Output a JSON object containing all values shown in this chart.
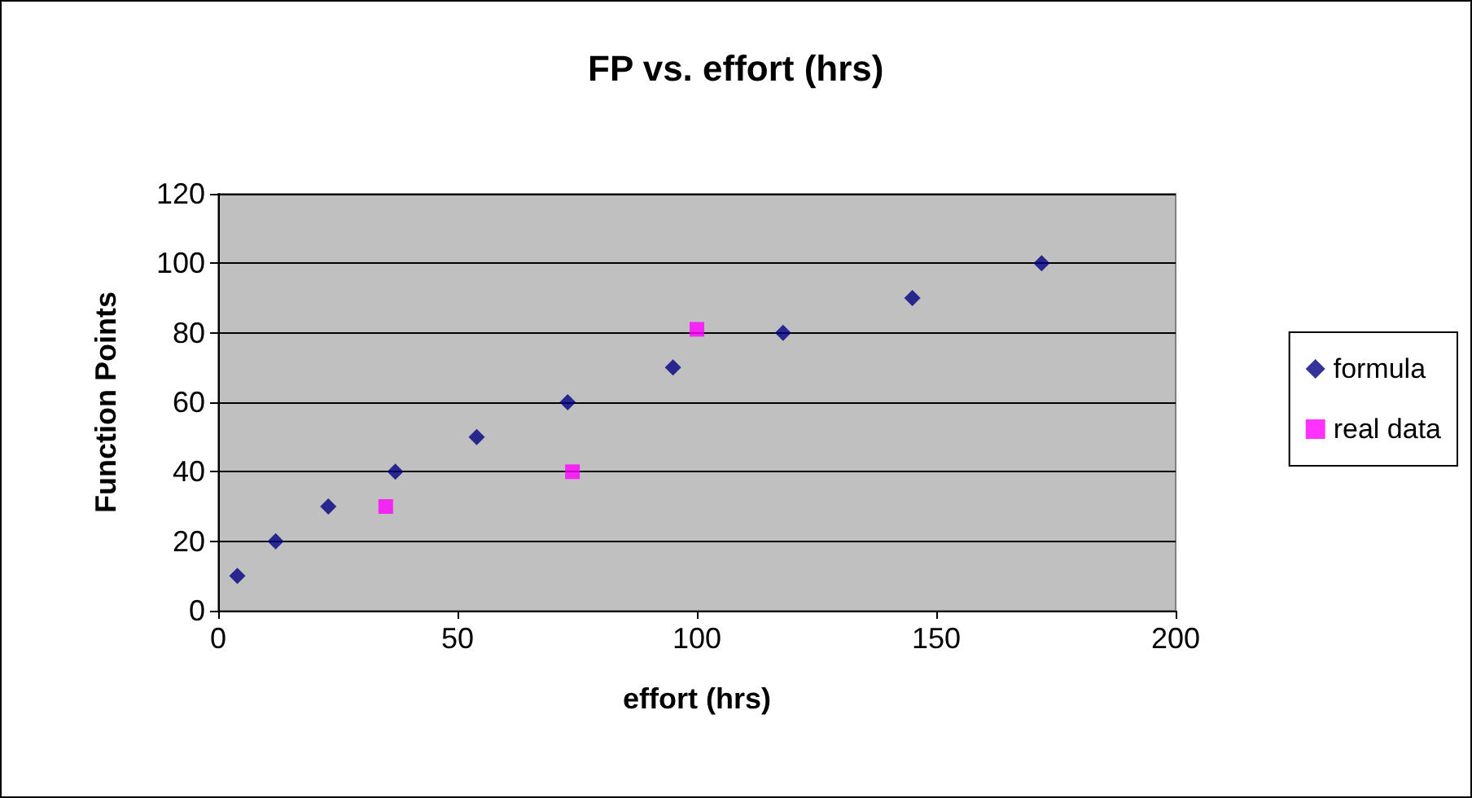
{
  "chart_data": {
    "type": "scatter",
    "title": "FP vs. effort (hrs)",
    "xlabel": "effort (hrs)",
    "ylabel": "Function Points",
    "xlim": [
      0,
      200
    ],
    "xticks": [
      0,
      50,
      100,
      150,
      200
    ],
    "ylim": [
      0,
      120
    ],
    "yticks": [
      0,
      20,
      40,
      60,
      80,
      100,
      120
    ],
    "grid": "y",
    "legend": "right",
    "series": [
      {
        "name": "formula",
        "color": "#000080",
        "marker": "diamond",
        "x": [
          4,
          12,
          23,
          37,
          54,
          73,
          95,
          118,
          145,
          172
        ],
        "values": [
          10,
          20,
          30,
          40,
          50,
          60,
          70,
          80,
          90,
          100
        ]
      },
      {
        "name": "real data",
        "color": "#ff00ff",
        "marker": "square",
        "x": [
          35,
          74,
          100
        ],
        "values": [
          30,
          40,
          81
        ]
      }
    ]
  }
}
